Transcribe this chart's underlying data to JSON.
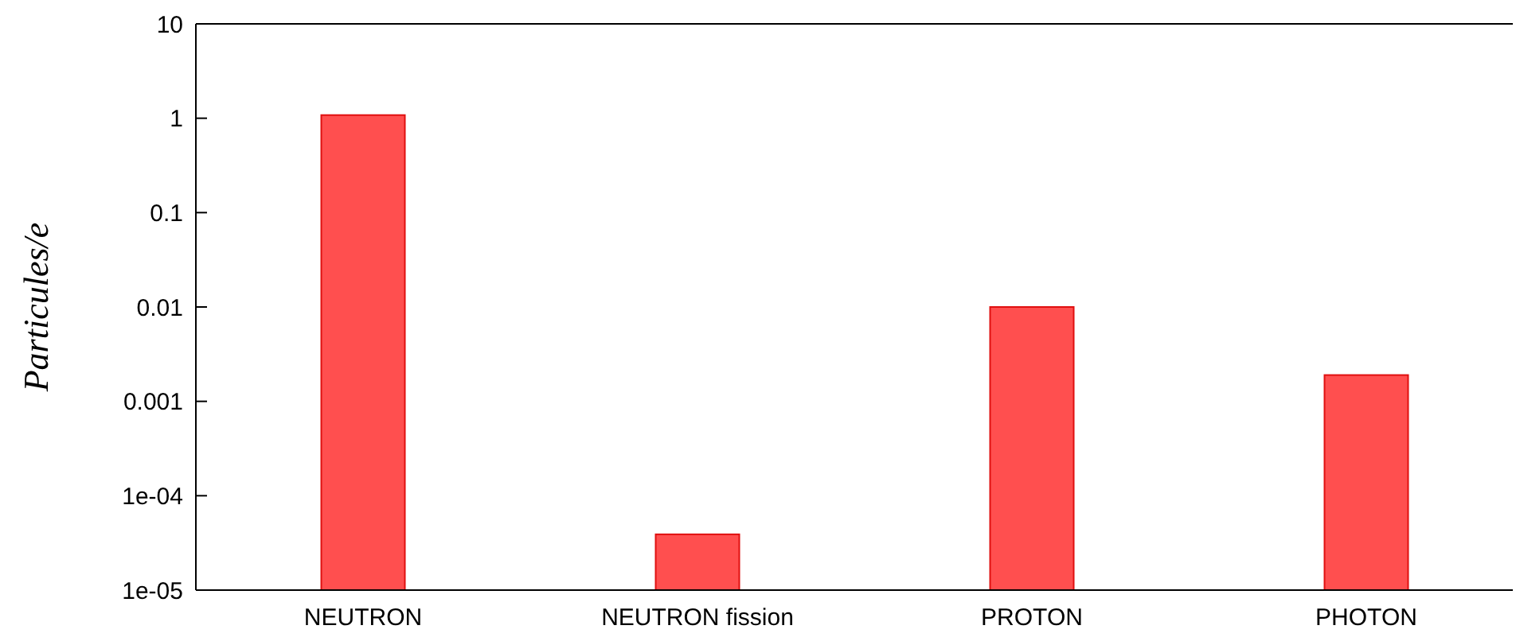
{
  "chart_data": {
    "type": "bar",
    "ylabel": "Particules/e",
    "log": true,
    "categories": [
      "NEUTRON",
      "NEUTRON fission",
      "PROTON",
      "PHOTON"
    ],
    "values": [
      1.08,
      3.9e-05,
      0.01,
      0.0019
    ],
    "color": "#ff4f4f",
    "ylim": [
      1e-05,
      10
    ],
    "yticks": [
      10,
      1,
      0.1,
      0.01,
      0.001,
      {
        "value": 0.0001,
        "label": "1e-04"
      },
      {
        "value": 1e-05,
        "label": "1e-05"
      }
    ],
    "grid": false
  }
}
